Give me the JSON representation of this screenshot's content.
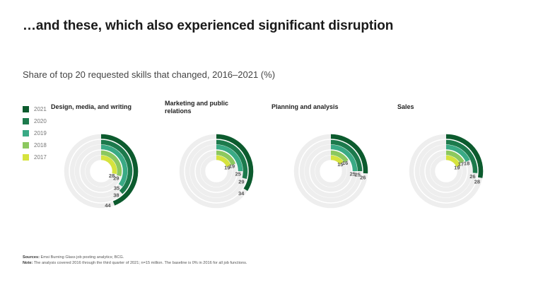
{
  "title": "…and these, which also experienced significant disruption",
  "subtitle": "Share of top 20 requested skills that changed, 2016–2021 (%)",
  "legend": [
    {
      "label": "2021",
      "color": "#0c5b2e"
    },
    {
      "label": "2020",
      "color": "#1c7a4c"
    },
    {
      "label": "2019",
      "color": "#3aaa85"
    },
    {
      "label": "2018",
      "color": "#8cc85f"
    },
    {
      "label": "2017",
      "color": "#d6e33e"
    }
  ],
  "track_color": "#eeeeee",
  "chart_data": [
    {
      "type": "radial-bar",
      "title": "Design, media, and writing",
      "categories": [
        "2017",
        "2018",
        "2019",
        "2020",
        "2021"
      ],
      "values": [
        28,
        29,
        35,
        38,
        44
      ],
      "value_labels": [
        "28",
        "29",
        "35",
        "38",
        "44"
      ],
      "max": 100
    },
    {
      "type": "radial-bar",
      "title": "Marketing and public relations",
      "categories": [
        "2017",
        "2018",
        "2019",
        "2020",
        "2021"
      ],
      "values": [
        19,
        19,
        25,
        29,
        34
      ],
      "value_labels": [
        "19",
        "19",
        "25",
        "29",
        "34"
      ],
      "max": 100
    },
    {
      "type": "radial-bar",
      "title": "Planning and analysis",
      "categories": [
        "2017",
        "2018",
        "2019",
        "2020",
        "2021"
      ],
      "values": [
        15,
        16,
        25,
        25,
        26
      ],
      "value_labels": [
        "15",
        "16",
        "25",
        "25",
        "26"
      ],
      "max": 100
    },
    {
      "type": "radial-bar",
      "title": "Sales",
      "categories": [
        "2017",
        "2018",
        "2019",
        "2020",
        "2021"
      ],
      "values": [
        19,
        17,
        18,
        26,
        28
      ],
      "value_labels": [
        "19",
        "17",
        "18",
        "26",
        "28"
      ],
      "max": 100
    }
  ],
  "footnotes": {
    "sources_label": "Sources:",
    "sources_text": "Emsi Burning Glass job posting analytics; BCG.",
    "note_label": "Note:",
    "note_text": "The analysis covered 2016 through the third quarter of 2021; n=15 million. The baseline is 0% in 2016 for all job functions."
  }
}
